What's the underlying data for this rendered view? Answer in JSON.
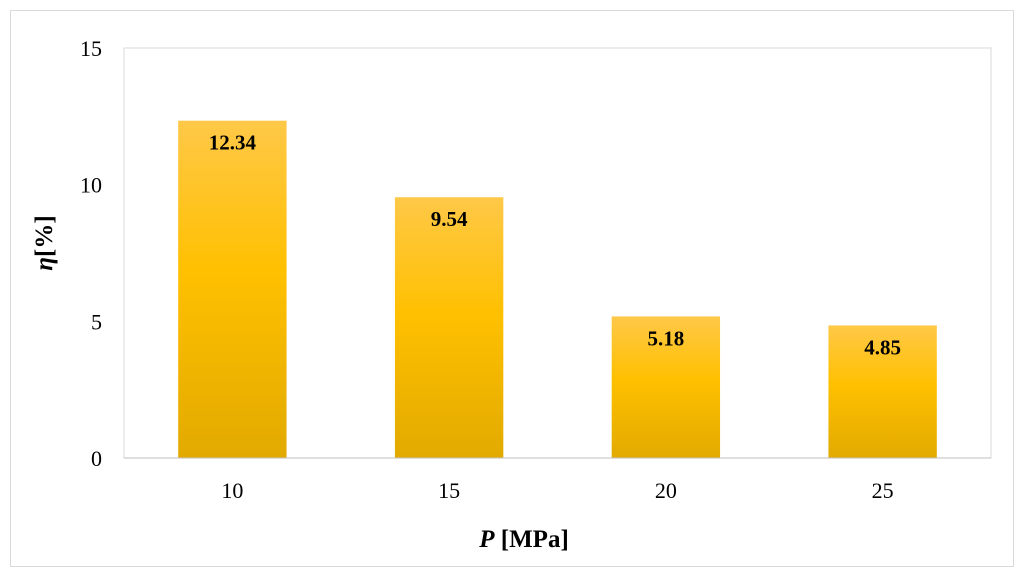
{
  "chart_data": {
    "type": "bar",
    "categories": [
      "10",
      "15",
      "20",
      "25"
    ],
    "values": [
      12.34,
      9.54,
      5.18,
      4.85
    ],
    "data_labels": [
      "12.34",
      "9.54",
      "5.18",
      "4.85"
    ],
    "xlabel_italic": "P",
    "xlabel_rest": " [MPa]",
    "ylabel_italic": "η",
    "ylabel_rest": "[%]",
    "ylim": [
      0,
      15
    ],
    "yticks": [
      "0",
      "5",
      "10",
      "15"
    ],
    "grid": false,
    "legend": "none",
    "colors": {
      "bar_top": "#ffc848",
      "bar_mid": "#ffc000",
      "bar_bottom": "#e2aa00",
      "plot_border": "#d9d9d9"
    }
  }
}
